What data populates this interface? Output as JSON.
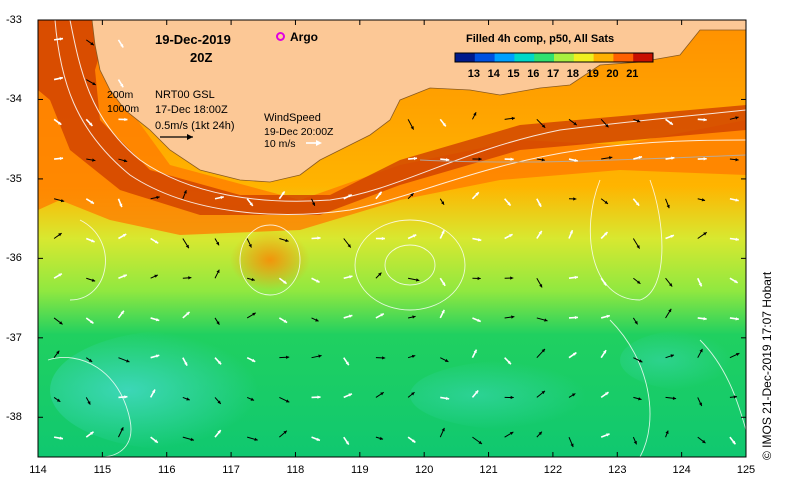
{
  "header": {
    "date": "19-Dec-2019",
    "hour": "20Z",
    "argo_label": "Argo"
  },
  "legend": {
    "depth_200": "200m",
    "depth_1000": "1000m",
    "gsl_title": "NRT00 GSL",
    "gsl_time": "17-Dec 18:00Z",
    "gsl_scale": "0.5m/s (1kt 24h)",
    "wind_title": "WindSpeed",
    "wind_time": "19-Dec 20:00Z",
    "wind_scale": "10 m/s"
  },
  "colorbar": {
    "title": "Filled 4h comp, p50, All Sats",
    "labels": [
      "13",
      "14",
      "15",
      "16",
      "17",
      "18",
      "19",
      "20",
      "21"
    ],
    "colors": [
      "#001a8c",
      "#0050e0",
      "#00a0ff",
      "#00d8c8",
      "#30e070",
      "#a8f040",
      "#f0f020",
      "#ffb000",
      "#ff6000",
      "#c81000"
    ]
  },
  "axes": {
    "x_ticks": [
      "114",
      "115",
      "116",
      "117",
      "118",
      "119",
      "120",
      "121",
      "122",
      "123",
      "124",
      "125"
    ],
    "y_ticks": [
      "-33",
      "-34",
      "-35",
      "-36",
      "-37",
      "-38"
    ],
    "lon_range": [
      114,
      125
    ],
    "lat_range": [
      -38.5,
      -33
    ]
  },
  "credit": "© IMOS 21-Dec-2019 17:07 Hobart",
  "colors": {
    "land": "#fcc896",
    "frame": "#000000",
    "contour": "#ffffff"
  }
}
